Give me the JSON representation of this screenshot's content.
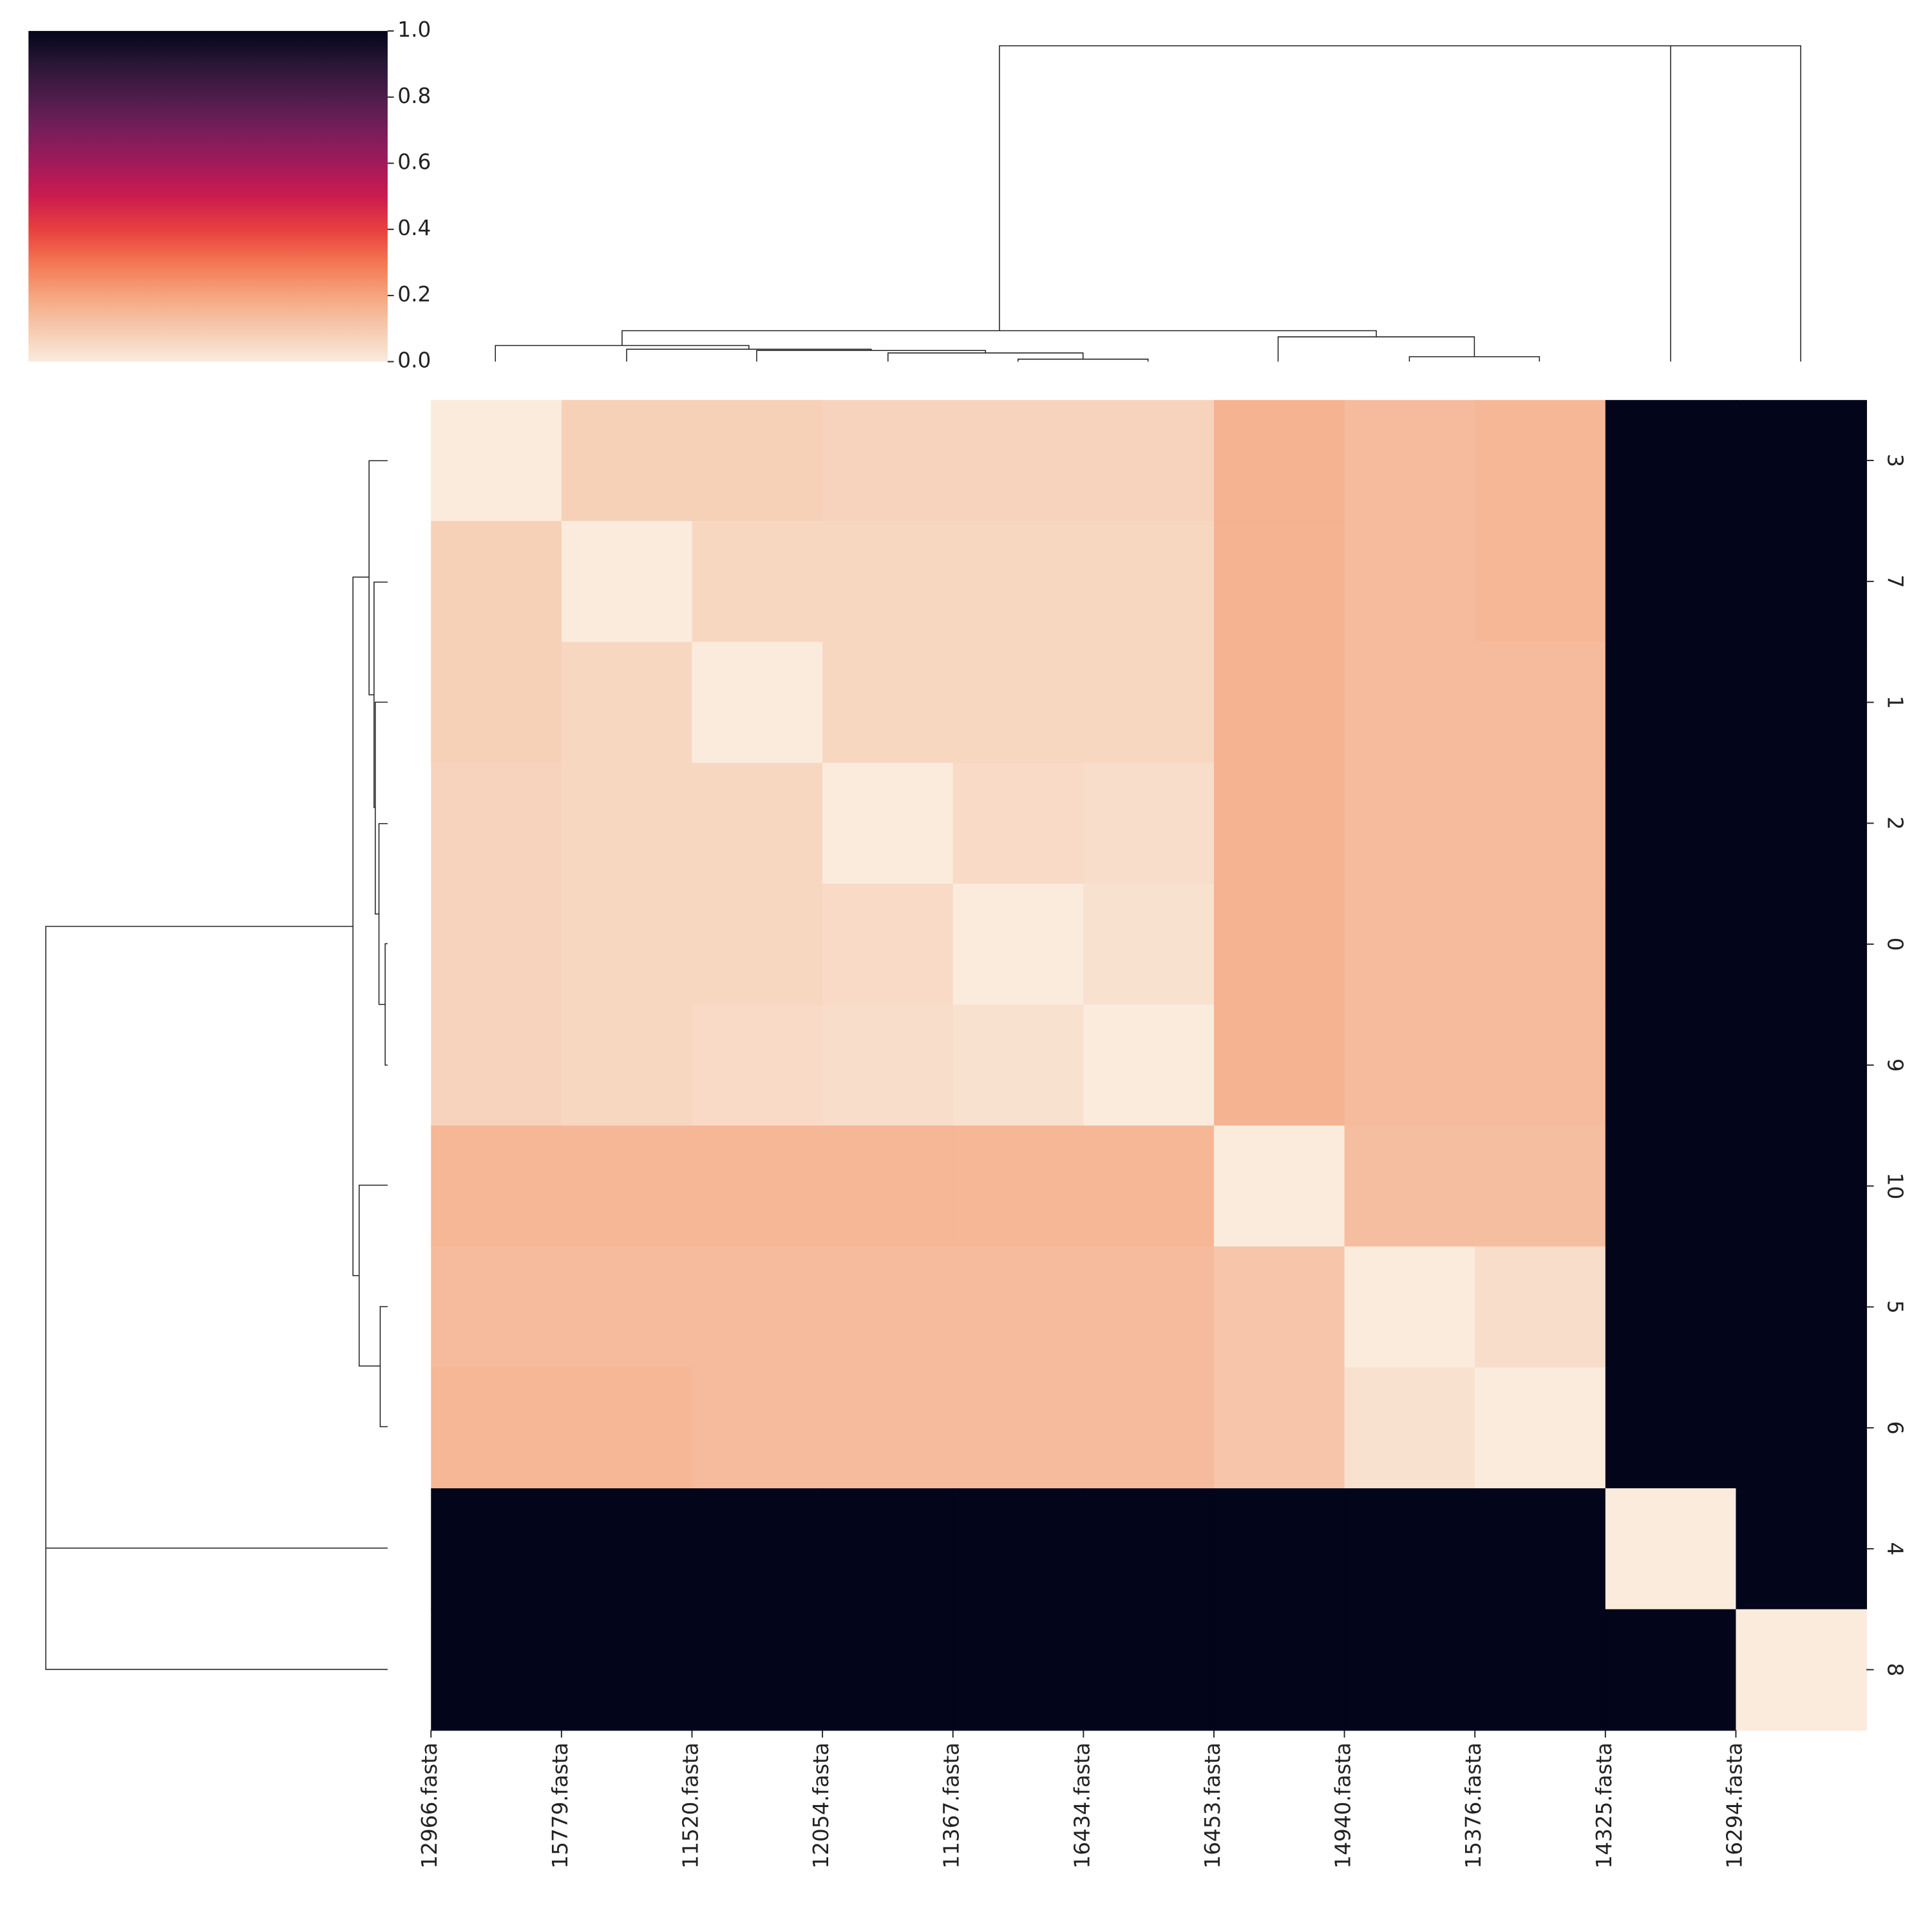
{
  "chart_data": {
    "type": "heatmap",
    "colormap": "rocket_r",
    "x_labels": [
      "12966.fasta",
      "15779.fasta",
      "11520.fasta",
      "12054.fasta",
      "11367.fasta",
      "16434.fasta",
      "16453.fasta",
      "14940.fasta",
      "15376.fasta",
      "14325.fasta",
      "16294.fasta"
    ],
    "y_labels": [
      "3",
      "7",
      "1",
      "2",
      "0",
      "9",
      "10",
      "5",
      "6",
      "4",
      "8"
    ],
    "values": [
      [
        0.0,
        0.08,
        0.08,
        0.07,
        0.07,
        0.07,
        0.16,
        0.14,
        0.15,
        1,
        1
      ],
      [
        0.08,
        0.0,
        0.06,
        0.06,
        0.06,
        0.06,
        0.16,
        0.14,
        0.15,
        1,
        1
      ],
      [
        0.08,
        0.06,
        0.0,
        0.06,
        0.06,
        0.06,
        0.16,
        0.14,
        0.14,
        1,
        1
      ],
      [
        0.07,
        0.06,
        0.06,
        0.0,
        0.05,
        0.04,
        0.16,
        0.14,
        0.14,
        1,
        1
      ],
      [
        0.07,
        0.06,
        0.06,
        0.05,
        0.0,
        0.03,
        0.16,
        0.14,
        0.14,
        1,
        1
      ],
      [
        0.07,
        0.06,
        0.05,
        0.04,
        0.03,
        0.0,
        0.16,
        0.14,
        0.14,
        1,
        1
      ],
      [
        0.15,
        0.15,
        0.15,
        0.15,
        0.15,
        0.15,
        0.0,
        0.13,
        0.13,
        1,
        1
      ],
      [
        0.14,
        0.14,
        0.14,
        0.14,
        0.14,
        0.14,
        0.11,
        0.0,
        0.04,
        1,
        1
      ],
      [
        0.15,
        0.15,
        0.14,
        0.14,
        0.14,
        0.14,
        0.11,
        0.03,
        0.0,
        1,
        1
      ],
      [
        1,
        1,
        1,
        1,
        1,
        1,
        1,
        1,
        1,
        0.0,
        1
      ],
      [
        1,
        1,
        1,
        1,
        1,
        1,
        1,
        1,
        1,
        1,
        0.0
      ]
    ],
    "clim": [
      0,
      1
    ],
    "cticks": [
      {
        "value": 0,
        "label": "0.0"
      },
      {
        "value": 0.2,
        "label": "0.2"
      },
      {
        "value": 0.4,
        "label": "0.4"
      },
      {
        "value": 0.6,
        "label": "0.6"
      },
      {
        "value": 0.8,
        "label": "0.8"
      },
      {
        "value": 1,
        "label": "1.0"
      }
    ]
  }
}
